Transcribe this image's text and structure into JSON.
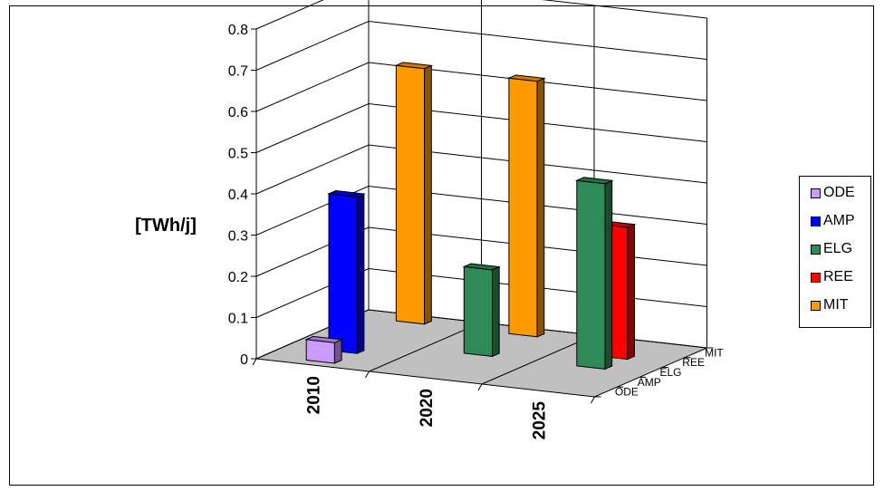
{
  "chart_data": {
    "type": "bar",
    "subtype": "3d-column",
    "ylabel": "[TWh/j]",
    "ylim": [
      0,
      0.8
    ],
    "yticks": [
      "0",
      "0.1",
      "0.2",
      "0.3",
      "0.4",
      "0.5",
      "0.6",
      "0.7",
      "0.8"
    ],
    "categories": [
      "2010",
      "2020",
      "2025"
    ],
    "depth_labels": [
      "ODE",
      "AMP",
      "ELG",
      "REE",
      "MIT"
    ],
    "grid": true,
    "legend_position": "right",
    "series": [
      {
        "name": "ODE",
        "color": "#cc99ff",
        "values": [
          0.05,
          null,
          null
        ]
      },
      {
        "name": "AMP",
        "color": "#0000ff",
        "values": [
          0.38,
          null,
          null
        ]
      },
      {
        "name": "ELG",
        "color": "#2e8b57",
        "values": [
          null,
          0.21,
          0.45
        ]
      },
      {
        "name": "REE",
        "color": "#ff0000",
        "values": [
          null,
          null,
          0.32
        ]
      },
      {
        "name": "MIT",
        "color": "#ff9900",
        "values": [
          0.62,
          0.62,
          null
        ]
      }
    ]
  }
}
